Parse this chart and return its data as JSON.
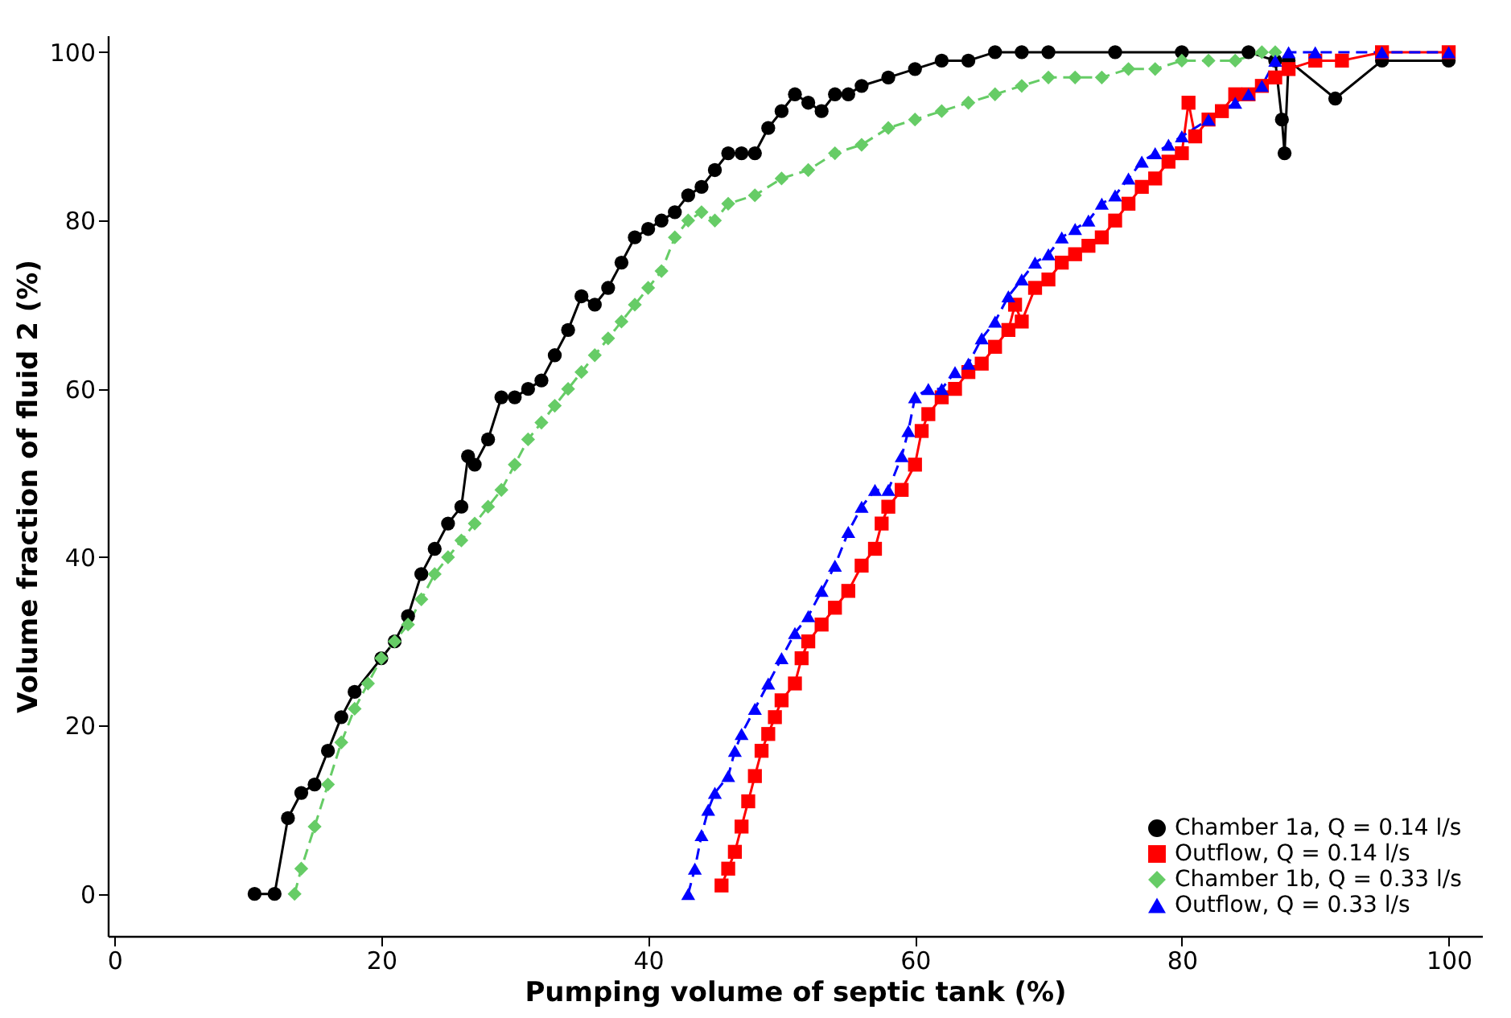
{
  "chart_data": {
    "type": "line",
    "xlabel": "Pumping volume of septic tank (%)",
    "ylabel": "Volume fraction of fluid 2 (%)",
    "xlim": [
      -0.5,
      102.5
    ],
    "ylim": [
      -5,
      102
    ],
    "xticks": [
      0,
      20,
      40,
      60,
      80,
      100
    ],
    "yticks": [
      0,
      20,
      40,
      60,
      80,
      100
    ],
    "grid": false,
    "legend": "bottom right",
    "series": [
      {
        "name": "Chamber 1a, Q = 0.14 l/s",
        "color": "#000000",
        "marker": "circle",
        "line_style": "solid",
        "x": [
          10.5,
          12,
          13,
          14,
          15,
          16,
          17,
          18,
          20,
          21,
          22,
          23,
          24,
          25,
          26,
          26.5,
          27,
          28,
          29,
          30,
          31,
          32,
          33,
          34,
          35,
          36,
          37,
          38,
          39,
          40,
          41,
          42,
          43,
          44,
          45,
          46,
          47,
          48,
          49,
          50,
          51,
          52,
          53,
          54,
          55,
          56,
          58,
          60,
          62,
          64,
          66,
          68,
          70,
          75,
          80,
          85,
          87,
          87.5,
          87.7,
          88,
          91.5,
          95,
          100
        ],
        "values": [
          0,
          0,
          9,
          12,
          13,
          17,
          21,
          24,
          28,
          30,
          33,
          38,
          41,
          44,
          46,
          52,
          51,
          54,
          59,
          59,
          60,
          61,
          64,
          67,
          71,
          70,
          72,
          75,
          78,
          79,
          80,
          81,
          83,
          84,
          86,
          88,
          88,
          88,
          91,
          93,
          95,
          94,
          93,
          95,
          95,
          96,
          97,
          98,
          99,
          99,
          100,
          100,
          100,
          100,
          100,
          100,
          99,
          92,
          88,
          99,
          94.5,
          99,
          99
        ]
      },
      {
        "name": "Outflow, Q = 0.14 l/s",
        "color": "#ff0000",
        "marker": "square",
        "line_style": "solid",
        "x": [
          45.5,
          46,
          46.5,
          47,
          47.5,
          48,
          48.5,
          49,
          49.5,
          50,
          51,
          51.5,
          52,
          53,
          54,
          55,
          56,
          57,
          57.5,
          58,
          59,
          60,
          60.5,
          61,
          62,
          63,
          64,
          65,
          66,
          67,
          67.5,
          68,
          69,
          70,
          71,
          72,
          73,
          74,
          75,
          76,
          77,
          78,
          79,
          80,
          80.5,
          81,
          82,
          83,
          84,
          85,
          86,
          87,
          88,
          90,
          92,
          95,
          100
        ],
        "values": [
          1,
          3,
          5,
          8,
          11,
          14,
          17,
          19,
          21,
          23,
          25,
          28,
          30,
          32,
          34,
          36,
          39,
          41,
          44,
          46,
          48,
          51,
          55,
          57,
          59,
          60,
          62,
          63,
          65,
          67,
          70,
          68,
          72,
          73,
          75,
          76,
          77,
          78,
          80,
          82,
          84,
          85,
          87,
          88,
          94,
          90,
          92,
          93,
          95,
          95,
          96,
          97,
          98,
          99,
          99,
          100,
          100
        ]
      },
      {
        "name": "Chamber 1b, Q = 0.33 l/s",
        "color": "#66cc66",
        "marker": "diamond",
        "line_style": "dashed",
        "x": [
          13.5,
          14,
          15,
          16,
          17,
          18,
          19,
          20,
          21,
          22,
          23,
          24,
          25,
          26,
          27,
          28,
          29,
          30,
          31,
          32,
          33,
          34,
          35,
          36,
          37,
          38,
          39,
          40,
          41,
          42,
          43,
          44,
          45,
          46,
          48,
          50,
          52,
          54,
          56,
          58,
          60,
          62,
          64,
          66,
          68,
          70,
          72,
          74,
          76,
          78,
          80,
          82,
          84,
          86,
          87
        ],
        "values": [
          0,
          3,
          8,
          13,
          18,
          22,
          25,
          28,
          30,
          32,
          35,
          38,
          40,
          42,
          44,
          46,
          48,
          51,
          54,
          56,
          58,
          60,
          62,
          64,
          66,
          68,
          70,
          72,
          74,
          78,
          80,
          81,
          80,
          82,
          83,
          85,
          86,
          88,
          89,
          91,
          92,
          93,
          94,
          95,
          96,
          97,
          97,
          97,
          98,
          98,
          99,
          99,
          99,
          100,
          100
        ]
      },
      {
        "name": "Outflow, Q = 0.33 l/s",
        "color": "#0000ff",
        "marker": "triangle",
        "line_style": "dashed",
        "x": [
          43,
          43.5,
          44,
          44.5,
          45,
          46,
          46.5,
          47,
          48,
          49,
          50,
          51,
          52,
          53,
          54,
          55,
          56,
          57,
          58,
          59,
          59.5,
          60,
          61,
          62,
          63,
          64,
          65,
          66,
          67,
          68,
          69,
          70,
          71,
          72,
          73,
          74,
          75,
          76,
          77,
          78,
          79,
          80,
          82,
          84,
          85,
          86,
          87,
          88,
          90,
          95,
          100
        ],
        "values": [
          0,
          3,
          7,
          10,
          12,
          14,
          17,
          19,
          22,
          25,
          28,
          31,
          33,
          36,
          39,
          43,
          46,
          48,
          48,
          52,
          55,
          59,
          60,
          60,
          62,
          63,
          66,
          68,
          71,
          73,
          75,
          76,
          78,
          79,
          80,
          82,
          83,
          85,
          87,
          88,
          89,
          90,
          92,
          94,
          95,
          96,
          99,
          100,
          100,
          100,
          100
        ]
      }
    ]
  }
}
